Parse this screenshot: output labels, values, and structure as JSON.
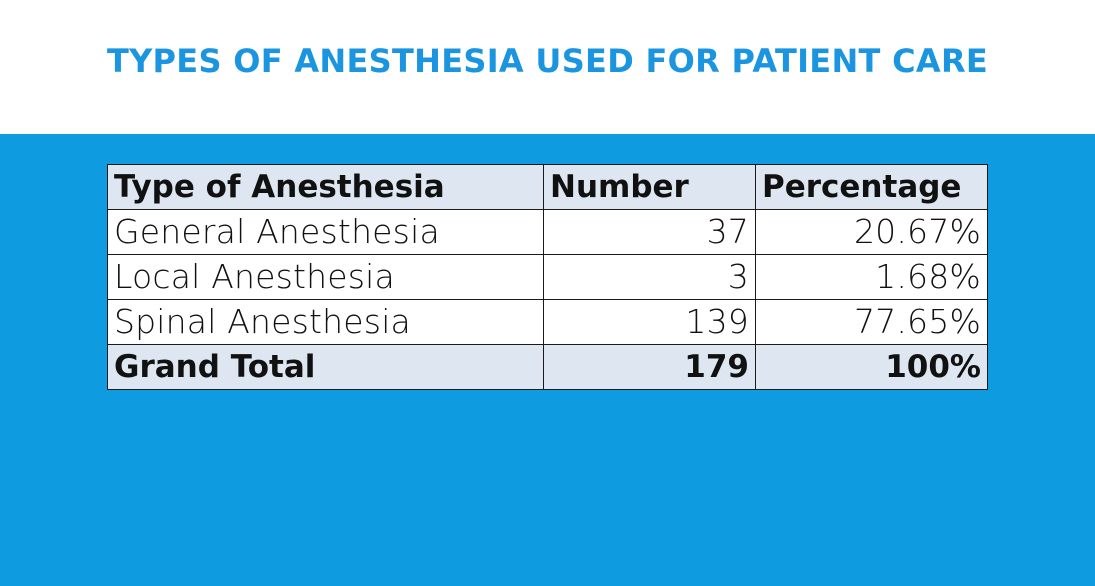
{
  "slide": {
    "title": "TYPES OF ANESTHESIA USED FOR PATIENT CARE"
  },
  "colors": {
    "title": "#1b95e0",
    "background_band": "#0e9be0",
    "header_fill": "#dde6f1",
    "cell_fill": "#ffffff"
  },
  "table": {
    "headers": [
      "Type of Anesthesia",
      "Number",
      "Percentage"
    ],
    "rows": [
      {
        "type": "General Anesthesia",
        "number": "37",
        "percentage": "20.67%"
      },
      {
        "type": "Local Anesthesia",
        "number": "3",
        "percentage": "1.68%"
      },
      {
        "type": "Spinal Anesthesia",
        "number": "139",
        "percentage": "77.65%"
      }
    ],
    "total": {
      "type": "Grand Total",
      "number": "179",
      "percentage": "100%"
    }
  }
}
